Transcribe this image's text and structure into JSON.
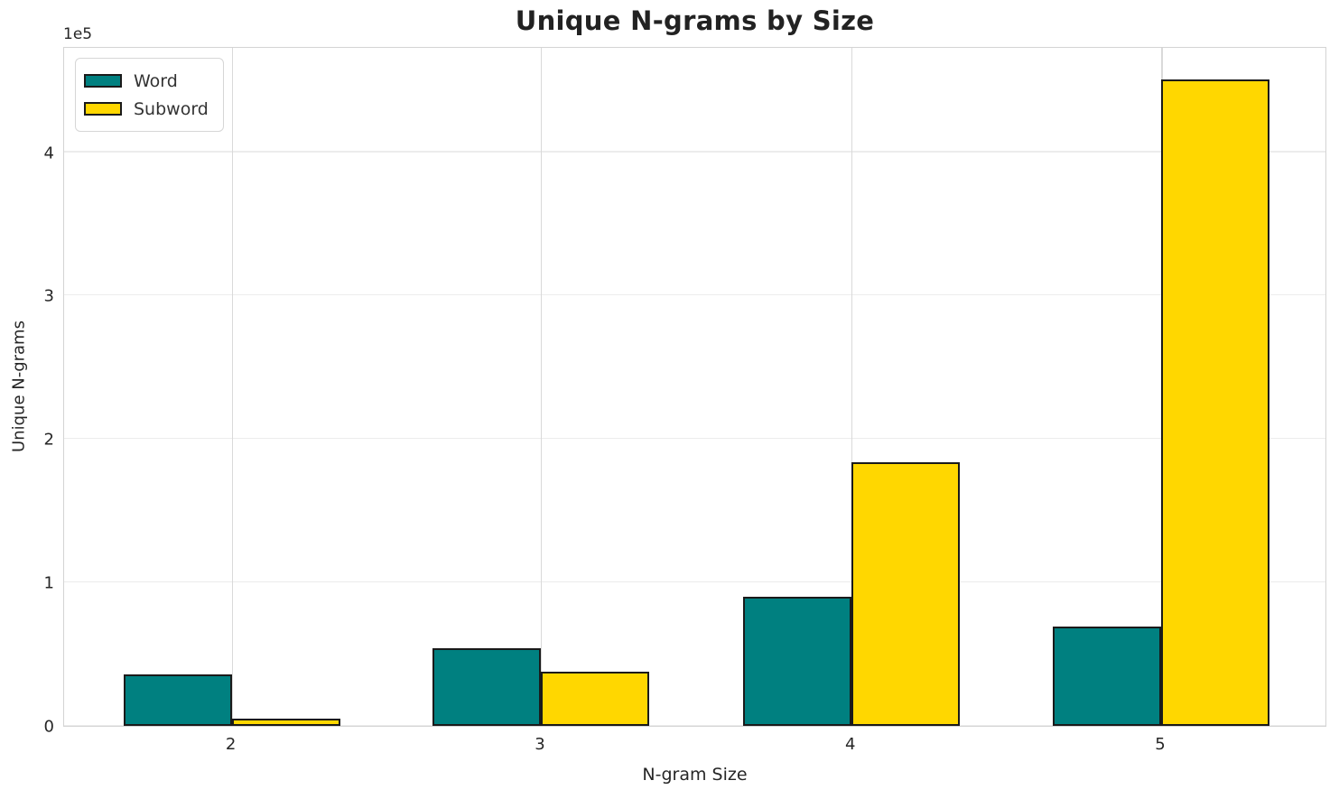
{
  "title": "Unique N-grams by Size",
  "chart_data": {
    "type": "bar",
    "title": "Unique N-grams by Size",
    "xlabel": "N-gram Size",
    "ylabel": "Unique N-grams",
    "y_offset_text": "1e5",
    "categories": [
      "2",
      "3",
      "4",
      "5"
    ],
    "series": [
      {
        "name": "Word",
        "color": "#008080",
        "values": [
          36000,
          54000,
          90000,
          69500
        ]
      },
      {
        "name": "Subword",
        "color": "#FFD700",
        "values": [
          5000,
          37500,
          184000,
          451000
        ]
      }
    ],
    "ylim": [
      0,
      474000
    ],
    "yticks": [
      0,
      100000,
      200000,
      300000,
      400000
    ],
    "ytick_labels": [
      "0",
      "1",
      "2",
      "3",
      "4"
    ],
    "grid": true,
    "legend_position": "upper-left",
    "bar_edge_color": "#1a1a1a",
    "background_color": "#ffffff"
  }
}
